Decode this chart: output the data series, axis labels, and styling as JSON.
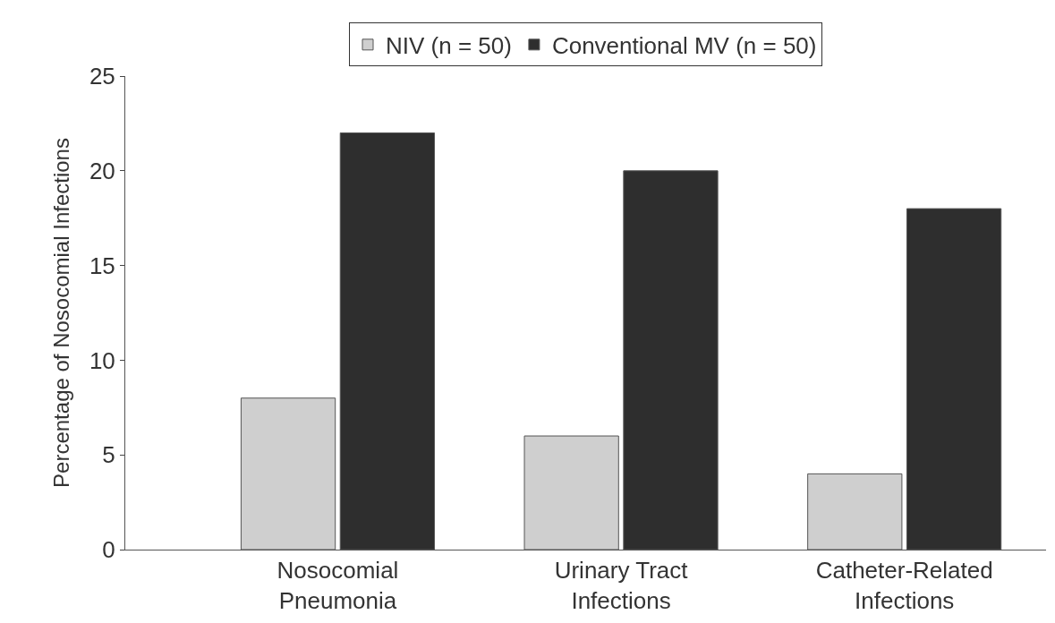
{
  "chart_data": {
    "type": "bar",
    "ylabel": "Percentage of Nosocomial Infections",
    "categories": [
      "Nosocomial Pneumonia",
      "Urinary Tract Infections",
      "Catheter-Related Infections"
    ],
    "series": [
      {
        "name": "NIV (n = 50)",
        "color": "#cfcfcf",
        "values": [
          8,
          6,
          4
        ]
      },
      {
        "name": "Conventional MV (n = 50)",
        "color": "#2e2e2e",
        "values": [
          22,
          20,
          18
        ]
      }
    ],
    "ylim": [
      0,
      25
    ],
    "yticks": [
      0,
      5,
      10,
      15,
      20,
      25
    ],
    "legend": "top"
  }
}
